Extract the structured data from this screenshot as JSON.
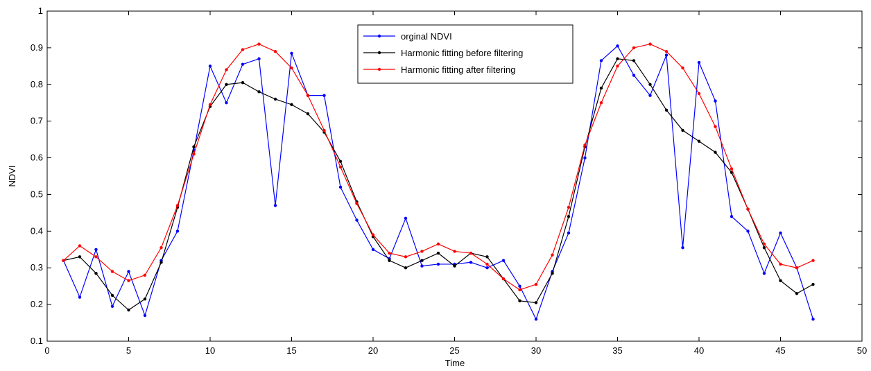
{
  "chart_data": {
    "type": "line",
    "title": "",
    "xlabel": "Time",
    "ylabel": "NDVI",
    "xlim": [
      0,
      50
    ],
    "ylim": [
      0.1,
      1
    ],
    "xticks": [
      "0",
      "5",
      "10",
      "15",
      "20",
      "25",
      "30",
      "35",
      "40",
      "45",
      "50"
    ],
    "yticks": [
      "0.1",
      "0.2",
      "0.3",
      "0.4",
      "0.5",
      "0.6",
      "0.7",
      "0.8",
      "0.9",
      "1"
    ],
    "grid": false,
    "legend_position": "top-center",
    "x": [
      1,
      2,
      3,
      4,
      5,
      6,
      7,
      8,
      9,
      10,
      11,
      12,
      13,
      14,
      15,
      16,
      17,
      18,
      19,
      20,
      21,
      22,
      23,
      24,
      25,
      26,
      27,
      28,
      29,
      30,
      31,
      32,
      33,
      34,
      35,
      36,
      37,
      38,
      39,
      40,
      41,
      42,
      43,
      44,
      45,
      46,
      47
    ],
    "series": [
      {
        "name": "orginal NDVI",
        "color": "#0000ff",
        "values": [
          0.32,
          0.22,
          0.35,
          0.195,
          0.29,
          0.17,
          0.32,
          0.4,
          0.62,
          0.85,
          0.75,
          0.855,
          0.87,
          0.47,
          0.885,
          0.77,
          0.77,
          0.52,
          0.43,
          0.35,
          0.325,
          0.435,
          0.305,
          0.31,
          0.31,
          0.315,
          0.3,
          0.32,
          0.25,
          0.16,
          0.29,
          0.395,
          0.6,
          0.865,
          0.905,
          0.825,
          0.77,
          0.88,
          0.355,
          0.86,
          0.755,
          0.44,
          0.4,
          0.285,
          0.395,
          0.3,
          0.16
        ]
      },
      {
        "name": "Harmonic fitting before filtering",
        "color": "#000000",
        "values": [
          0.32,
          0.33,
          0.285,
          0.225,
          0.185,
          0.215,
          0.315,
          0.465,
          0.63,
          0.74,
          0.8,
          0.805,
          0.78,
          0.76,
          0.745,
          0.72,
          0.67,
          0.59,
          0.48,
          0.385,
          0.32,
          0.3,
          0.32,
          0.34,
          0.305,
          0.34,
          0.33,
          0.27,
          0.21,
          0.205,
          0.285,
          0.44,
          0.63,
          0.79,
          0.87,
          0.865,
          0.8,
          0.73,
          0.675,
          0.645,
          0.615,
          0.56,
          0.46,
          0.355,
          0.265,
          0.23,
          0.255
        ]
      },
      {
        "name": "Harmonic fitting after filtering",
        "color": "#ff0000",
        "values": [
          0.32,
          0.36,
          0.33,
          0.29,
          0.265,
          0.28,
          0.355,
          0.47,
          0.61,
          0.745,
          0.84,
          0.895,
          0.91,
          0.89,
          0.845,
          0.77,
          0.675,
          0.575,
          0.475,
          0.39,
          0.34,
          0.33,
          0.345,
          0.365,
          0.345,
          0.34,
          0.31,
          0.27,
          0.24,
          0.255,
          0.335,
          0.465,
          0.635,
          0.75,
          0.85,
          0.9,
          0.91,
          0.89,
          0.845,
          0.775,
          0.685,
          0.57,
          0.46,
          0.365,
          0.31,
          0.3,
          0.32
        ]
      }
    ]
  }
}
